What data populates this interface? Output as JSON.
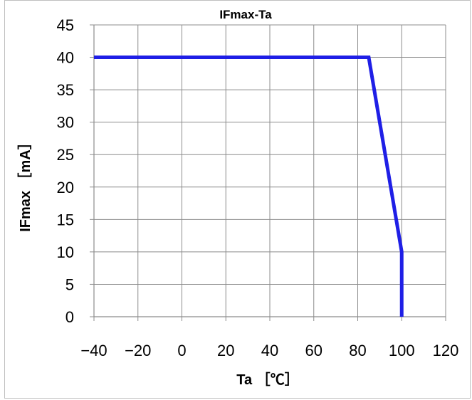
{
  "chart_data": {
    "type": "line",
    "title": "IFmax-Ta",
    "xlabel": "Ta ［℃］",
    "ylabel": "IFmax ［mA］",
    "xlim": [
      -40,
      120
    ],
    "ylim": [
      0,
      45
    ],
    "x_ticks": [
      "−40",
      "−20",
      "0",
      "20",
      "40",
      "60",
      "80",
      "100",
      "120"
    ],
    "y_ticks": [
      "0",
      "5",
      "10",
      "15",
      "20",
      "25",
      "30",
      "35",
      "40",
      "45"
    ],
    "grid": true,
    "legend": "none",
    "series": [
      {
        "color": "#1f1fe6",
        "x": [
          -40,
          85,
          100,
          100
        ],
        "y": [
          40,
          40,
          10,
          0
        ]
      }
    ]
  }
}
